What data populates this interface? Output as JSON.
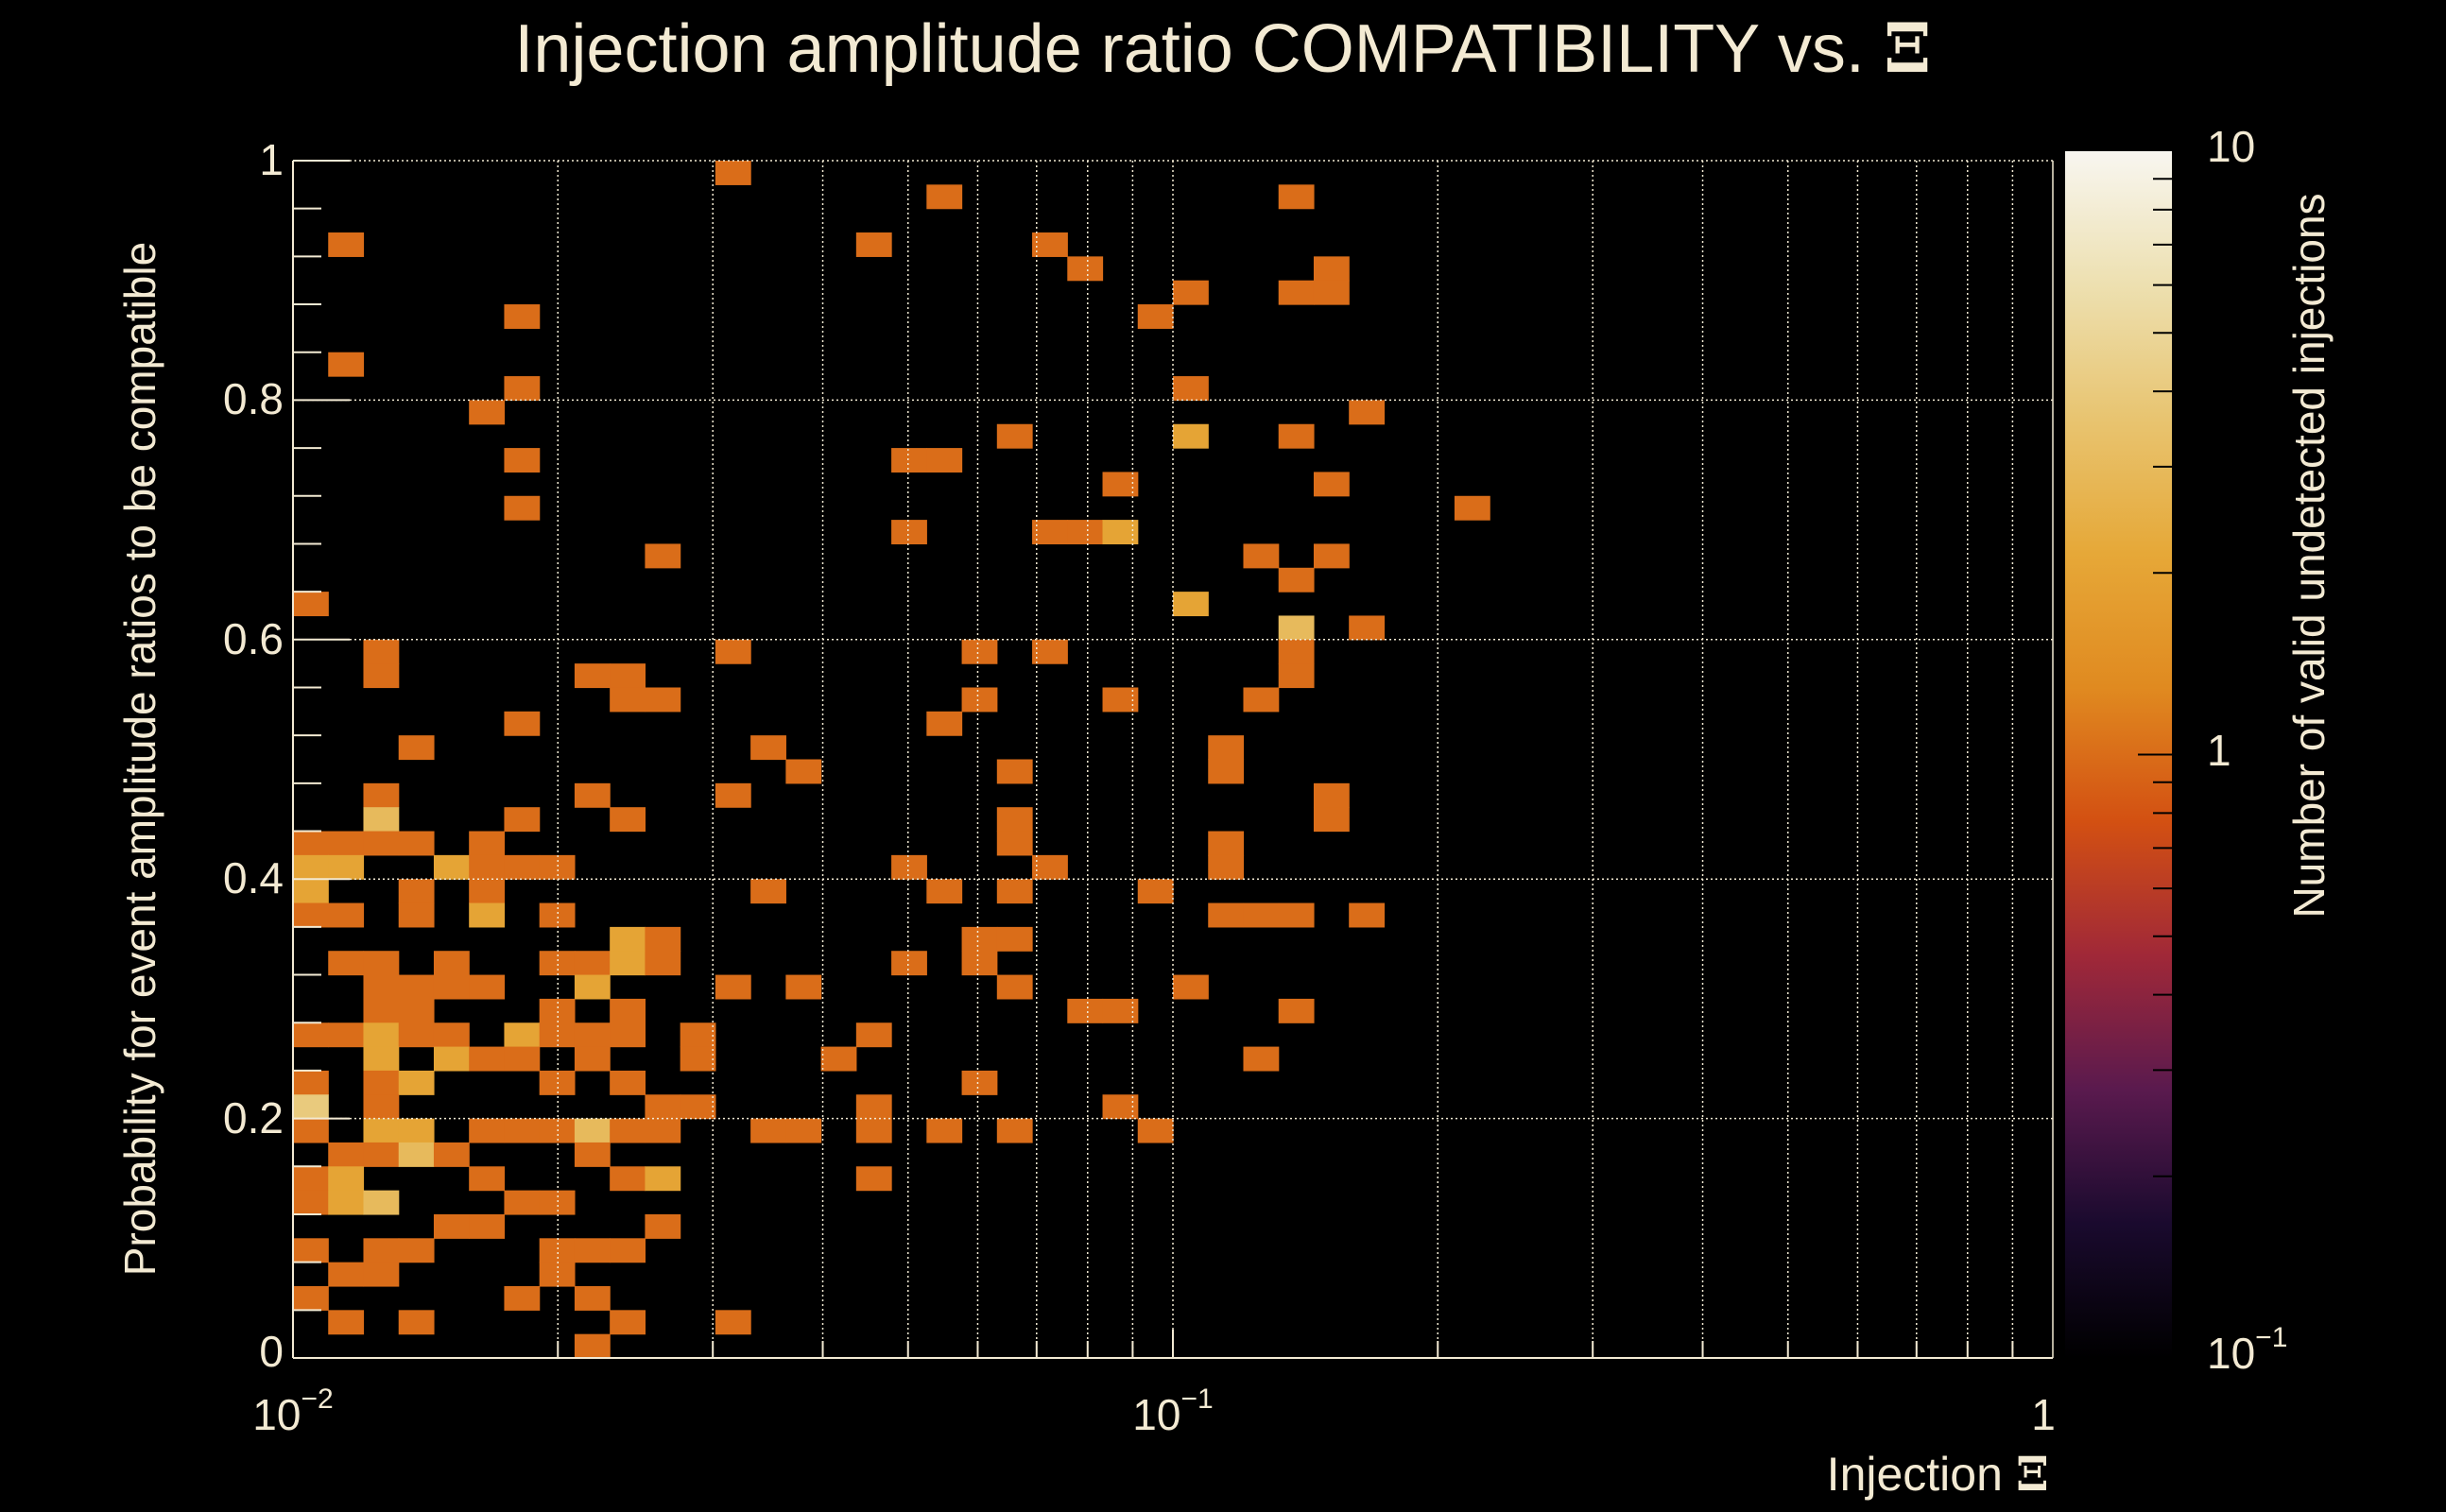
{
  "chart_data": {
    "type": "heatmap",
    "title_text": "Injection amplitude ratio COMPATIBILITY vs.",
    "title_symbol": "Ξ",
    "xlabel_text": "Injection",
    "xlabel_symbol": "Ξ",
    "ylabel": "Probability for event amplitude ratios to be compatible",
    "zlabel": "Number of valid undetected injections",
    "x_scale": "log",
    "xlim": [
      0.01,
      1
    ],
    "ylim": [
      0,
      1
    ],
    "zlim": [
      0.1,
      10
    ],
    "z_scale": "log",
    "x_bins": 50,
    "y_bins": 50,
    "x_ticks": [
      {
        "value": 0.01,
        "base": "10",
        "exp": "−2"
      },
      {
        "value": 0.1,
        "base": "10",
        "exp": "−1"
      },
      {
        "value": 1,
        "base": "1",
        "exp": ""
      }
    ],
    "y_ticks": [
      {
        "value": 0,
        "label": "0"
      },
      {
        "value": 0.2,
        "label": "0.2"
      },
      {
        "value": 0.4,
        "label": "0.4"
      },
      {
        "value": 0.6,
        "label": "0.6"
      },
      {
        "value": 0.8,
        "label": "0.8"
      },
      {
        "value": 1,
        "label": "1"
      }
    ],
    "z_ticks": [
      {
        "value": 10,
        "base": "10",
        "exp": ""
      },
      {
        "value": 1,
        "base": "1",
        "exp": ""
      },
      {
        "value": 0.1,
        "base": "10",
        "exp": "−1"
      }
    ],
    "grid": true,
    "colormap": [
      "#000000",
      "#1a0a2e",
      "#5a1a4e",
      "#a02838",
      "#d35012",
      "#e08a20",
      "#e6a838",
      "#e8c470",
      "#ede0b0",
      "#f8f6f0"
    ],
    "cells_format": "[x_bin_index, y_bin_index, count]",
    "cells": [
      [
        12,
        49,
        1
      ],
      [
        18,
        48,
        1
      ],
      [
        28,
        48,
        1
      ],
      [
        1,
        46,
        1
      ],
      [
        16,
        46,
        1
      ],
      [
        21,
        46,
        1
      ],
      [
        22,
        45,
        1
      ],
      [
        29,
        45,
        1
      ],
      [
        25,
        44,
        1
      ],
      [
        28,
        44,
        1
      ],
      [
        29,
        44,
        1
      ],
      [
        6,
        43,
        1
      ],
      [
        24,
        43,
        1
      ],
      [
        1,
        41,
        1
      ],
      [
        6,
        40,
        1
      ],
      [
        25,
        40,
        1
      ],
      [
        5,
        39,
        1
      ],
      [
        30,
        39,
        1
      ],
      [
        20,
        38,
        1
      ],
      [
        25,
        38,
        2
      ],
      [
        28,
        38,
        1
      ],
      [
        6,
        37,
        1
      ],
      [
        17,
        37,
        1
      ],
      [
        18,
        37,
        1
      ],
      [
        23,
        36,
        1
      ],
      [
        29,
        36,
        1
      ],
      [
        6,
        35,
        1
      ],
      [
        33,
        35,
        1
      ],
      [
        17,
        34,
        1
      ],
      [
        21,
        34,
        1
      ],
      [
        22,
        34,
        1
      ],
      [
        23,
        34,
        2
      ],
      [
        10,
        33,
        1
      ],
      [
        27,
        33,
        1
      ],
      [
        29,
        33,
        1
      ],
      [
        28,
        32,
        1
      ],
      [
        0,
        31,
        1
      ],
      [
        25,
        31,
        2
      ],
      [
        28,
        30,
        3
      ],
      [
        30,
        30,
        1
      ],
      [
        2,
        29,
        1
      ],
      [
        12,
        29,
        1
      ],
      [
        19,
        29,
        1
      ],
      [
        21,
        29,
        1
      ],
      [
        28,
        29,
        1
      ],
      [
        2,
        28,
        1
      ],
      [
        8,
        28,
        1
      ],
      [
        9,
        28,
        1
      ],
      [
        28,
        28,
        1
      ],
      [
        9,
        27,
        1
      ],
      [
        10,
        27,
        1
      ],
      [
        19,
        27,
        1
      ],
      [
        23,
        27,
        1
      ],
      [
        27,
        27,
        1
      ],
      [
        6,
        26,
        1
      ],
      [
        18,
        26,
        1
      ],
      [
        3,
        25,
        1
      ],
      [
        13,
        25,
        1
      ],
      [
        26,
        25,
        1
      ],
      [
        14,
        24,
        1
      ],
      [
        20,
        24,
        1
      ],
      [
        26,
        24,
        1
      ],
      [
        2,
        23,
        1
      ],
      [
        8,
        23,
        1
      ],
      [
        12,
        23,
        1
      ],
      [
        29,
        23,
        1
      ],
      [
        2,
        22,
        3
      ],
      [
        6,
        22,
        1
      ],
      [
        9,
        22,
        1
      ],
      [
        20,
        22,
        1
      ],
      [
        29,
        22,
        1
      ],
      [
        0,
        21,
        1
      ],
      [
        1,
        21,
        1
      ],
      [
        2,
        21,
        1
      ],
      [
        3,
        21,
        1
      ],
      [
        5,
        21,
        1
      ],
      [
        20,
        21,
        1
      ],
      [
        26,
        21,
        1
      ],
      [
        0,
        20,
        2
      ],
      [
        1,
        20,
        2
      ],
      [
        4,
        20,
        2
      ],
      [
        5,
        20,
        1
      ],
      [
        6,
        20,
        1
      ],
      [
        7,
        20,
        1
      ],
      [
        17,
        20,
        1
      ],
      [
        21,
        20,
        1
      ],
      [
        26,
        20,
        1
      ],
      [
        0,
        19,
        2
      ],
      [
        3,
        19,
        1
      ],
      [
        5,
        19,
        1
      ],
      [
        13,
        19,
        1
      ],
      [
        18,
        19,
        1
      ],
      [
        20,
        19,
        1
      ],
      [
        24,
        19,
        1
      ],
      [
        0,
        18,
        1
      ],
      [
        1,
        18,
        1
      ],
      [
        3,
        18,
        1
      ],
      [
        5,
        18,
        2
      ],
      [
        7,
        18,
        1
      ],
      [
        26,
        18,
        1
      ],
      [
        27,
        18,
        1
      ],
      [
        28,
        18,
        1
      ],
      [
        30,
        18,
        1
      ],
      [
        9,
        17,
        2
      ],
      [
        10,
        17,
        1
      ],
      [
        19,
        17,
        1
      ],
      [
        20,
        17,
        1
      ],
      [
        1,
        16,
        1
      ],
      [
        2,
        16,
        1
      ],
      [
        4,
        16,
        1
      ],
      [
        7,
        16,
        1
      ],
      [
        8,
        16,
        1
      ],
      [
        9,
        16,
        2
      ],
      [
        10,
        16,
        1
      ],
      [
        17,
        16,
        1
      ],
      [
        19,
        16,
        1
      ],
      [
        2,
        15,
        1
      ],
      [
        3,
        15,
        1
      ],
      [
        4,
        15,
        1
      ],
      [
        5,
        15,
        1
      ],
      [
        8,
        15,
        2
      ],
      [
        12,
        15,
        1
      ],
      [
        14,
        15,
        1
      ],
      [
        20,
        15,
        1
      ],
      [
        25,
        15,
        1
      ],
      [
        2,
        14,
        1
      ],
      [
        3,
        14,
        1
      ],
      [
        7,
        14,
        1
      ],
      [
        9,
        14,
        1
      ],
      [
        22,
        14,
        1
      ],
      [
        23,
        14,
        1
      ],
      [
        28,
        14,
        1
      ],
      [
        0,
        13,
        1
      ],
      [
        1,
        13,
        1
      ],
      [
        2,
        13,
        2
      ],
      [
        3,
        13,
        1
      ],
      [
        4,
        13,
        1
      ],
      [
        6,
        13,
        2
      ],
      [
        7,
        13,
        1
      ],
      [
        8,
        13,
        1
      ],
      [
        9,
        13,
        1
      ],
      [
        11,
        13,
        1
      ],
      [
        16,
        13,
        1
      ],
      [
        2,
        12,
        2
      ],
      [
        4,
        12,
        2
      ],
      [
        5,
        12,
        1
      ],
      [
        6,
        12,
        1
      ],
      [
        8,
        12,
        1
      ],
      [
        11,
        12,
        1
      ],
      [
        15,
        12,
        1
      ],
      [
        27,
        12,
        1
      ],
      [
        0,
        11,
        1
      ],
      [
        2,
        11,
        1
      ],
      [
        3,
        11,
        2
      ],
      [
        7,
        11,
        1
      ],
      [
        9,
        11,
        1
      ],
      [
        19,
        11,
        1
      ],
      [
        0,
        10,
        4
      ],
      [
        2,
        10,
        1
      ],
      [
        10,
        10,
        1
      ],
      [
        11,
        10,
        1
      ],
      [
        16,
        10,
        1
      ],
      [
        23,
        10,
        1
      ],
      [
        0,
        9,
        1
      ],
      [
        2,
        9,
        2
      ],
      [
        3,
        9,
        2
      ],
      [
        5,
        9,
        1
      ],
      [
        6,
        9,
        1
      ],
      [
        7,
        9,
        1
      ],
      [
        8,
        9,
        3
      ],
      [
        9,
        9,
        1
      ],
      [
        10,
        9,
        1
      ],
      [
        13,
        9,
        1
      ],
      [
        14,
        9,
        1
      ],
      [
        16,
        9,
        1
      ],
      [
        18,
        9,
        1
      ],
      [
        20,
        9,
        1
      ],
      [
        24,
        9,
        1
      ],
      [
        1,
        8,
        1
      ],
      [
        2,
        8,
        1
      ],
      [
        3,
        8,
        3
      ],
      [
        4,
        8,
        1
      ],
      [
        8,
        8,
        1
      ],
      [
        0,
        7,
        1
      ],
      [
        1,
        7,
        2
      ],
      [
        5,
        7,
        1
      ],
      [
        9,
        7,
        1
      ],
      [
        10,
        7,
        2
      ],
      [
        16,
        7,
        1
      ],
      [
        0,
        6,
        1
      ],
      [
        1,
        6,
        2
      ],
      [
        2,
        6,
        3
      ],
      [
        6,
        6,
        1
      ],
      [
        7,
        6,
        1
      ],
      [
        4,
        5,
        1
      ],
      [
        5,
        5,
        1
      ],
      [
        10,
        5,
        1
      ],
      [
        0,
        4,
        1
      ],
      [
        2,
        4,
        1
      ],
      [
        3,
        4,
        1
      ],
      [
        7,
        4,
        1
      ],
      [
        8,
        4,
        1
      ],
      [
        9,
        4,
        1
      ],
      [
        1,
        3,
        1
      ],
      [
        2,
        3,
        1
      ],
      [
        7,
        3,
        1
      ],
      [
        0,
        2,
        1
      ],
      [
        6,
        2,
        1
      ],
      [
        8,
        2,
        1
      ],
      [
        1,
        1,
        1
      ],
      [
        3,
        1,
        1
      ],
      [
        9,
        1,
        1
      ],
      [
        12,
        1,
        1
      ],
      [
        8,
        0,
        1
      ]
    ]
  }
}
